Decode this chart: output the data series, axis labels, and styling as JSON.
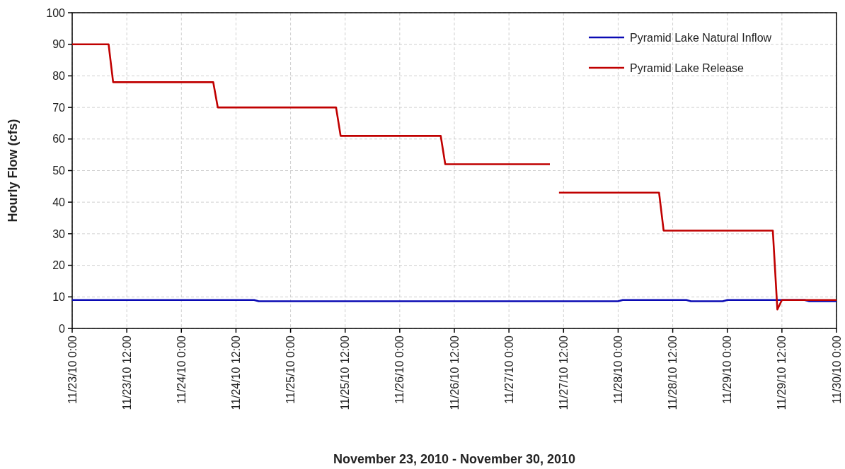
{
  "chart_data": {
    "type": "line",
    "xlabel": "November 23, 2010 - November 30, 2010",
    "ylabel": "Hourly Flow (cfs)",
    "xlim": [
      "2010-11-23T00:00",
      "2010-11-30T00:00"
    ],
    "xticks": [
      {
        "value": "2010-11-23T00:00",
        "label": "11/23/10 0:00"
      },
      {
        "value": "2010-11-23T12:00",
        "label": "11/23/10 12:00"
      },
      {
        "value": "2010-11-24T00:00",
        "label": "11/24/10 0:00"
      },
      {
        "value": "2010-11-24T12:00",
        "label": "11/24/10 12:00"
      },
      {
        "value": "2010-11-25T00:00",
        "label": "11/25/10 0:00"
      },
      {
        "value": "2010-11-25T12:00",
        "label": "11/25/10 12:00"
      },
      {
        "value": "2010-11-26T00:00",
        "label": "11/26/10 0:00"
      },
      {
        "value": "2010-11-26T12:00",
        "label": "11/26/10 12:00"
      },
      {
        "value": "2010-11-27T00:00",
        "label": "11/27/10 0:00"
      },
      {
        "value": "2010-11-27T12:00",
        "label": "11/27/10 12:00"
      },
      {
        "value": "2010-11-28T00:00",
        "label": "11/28/10 0:00"
      },
      {
        "value": "2010-11-28T12:00",
        "label": "11/28/10 12:00"
      },
      {
        "value": "2010-11-29T00:00",
        "label": "11/29/10 0:00"
      },
      {
        "value": "2010-11-29T12:00",
        "label": "11/29/10 12:00"
      },
      {
        "value": "2010-11-30T00:00",
        "label": "11/30/10 0:00"
      }
    ],
    "ylim": [
      0,
      100
    ],
    "yticks": [
      0,
      10,
      20,
      30,
      40,
      50,
      60,
      70,
      80,
      90,
      100
    ],
    "grid": true,
    "legend": "top right",
    "series": [
      {
        "name": "Pyramid Lake Natural Inflow",
        "color": "#0a0ab4",
        "x": [
          "2010-11-23T00:00",
          "2010-11-24T16:00",
          "2010-11-24T17:00",
          "2010-11-28T00:00",
          "2010-11-28T01:00",
          "2010-11-28T15:00",
          "2010-11-28T16:00",
          "2010-11-28T23:00",
          "2010-11-29T00:00",
          "2010-11-29T17:00",
          "2010-11-29T18:00",
          "2010-11-30T00:00"
        ],
        "values": [
          9,
          9,
          8.6,
          8.6,
          9,
          9,
          8.6,
          8.6,
          9,
          9,
          8.6,
          8.6
        ]
      },
      {
        "name": "Pyramid Lake Release",
        "color": "#c00000",
        "x": [
          "2010-11-23T00:00",
          "2010-11-23T08:00",
          "2010-11-23T09:00",
          "2010-11-24T07:00",
          "2010-11-24T08:00",
          "2010-11-25T10:00",
          "2010-11-25T11:00",
          "2010-11-26T09:00",
          "2010-11-26T10:00",
          "2010-11-27T09:00",
          "2010-11-27T10:00",
          "2010-11-27T11:00",
          "2010-11-28T09:00",
          "2010-11-28T10:00",
          "2010-11-29T10:00",
          "2010-11-29T11:00",
          "2010-11-29T12:00",
          "2010-11-30T00:00"
        ],
        "values": [
          90,
          90,
          78,
          78,
          70,
          70,
          61,
          61,
          52,
          52,
          null,
          43,
          43,
          31,
          31,
          6,
          9,
          9
        ]
      }
    ]
  }
}
